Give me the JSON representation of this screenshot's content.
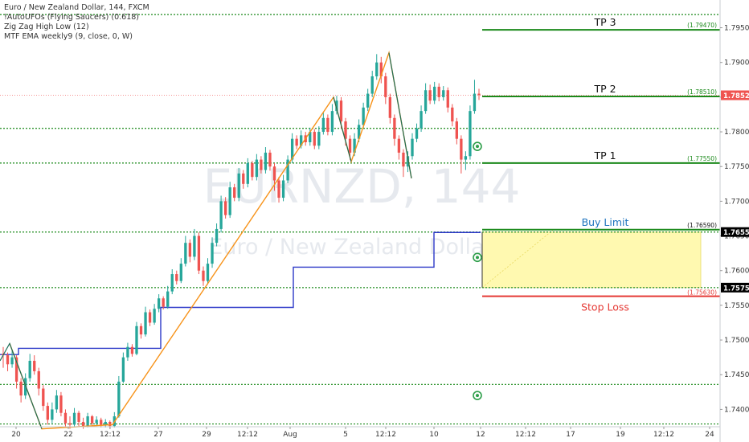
{
  "legend": {
    "title": "Euro / New Zealand Dollar, 144, FXCM",
    "indicators": [
      "!AutoUFOs (Flying Saucers) (0.618)",
      "Zig Zag High Low (12)",
      "MTF EMA weekly9 (9, close, 0, W)"
    ]
  },
  "watermark": {
    "symbol": "EURNZD, 144",
    "name": "Euro / New Zealand Dollar"
  },
  "colors": {
    "up": "#26a69a",
    "down": "#ef5350",
    "green_line": "#1b8a1b",
    "red_line": "#e53935",
    "zigzag": "#f7931a",
    "ema": "#2c38c8",
    "buy_zone": "#fff9b0",
    "buy_label": "#1e73be"
  },
  "chart_data": {
    "type": "candlestick",
    "symbol": "EURNZD",
    "timeframe": "144",
    "ylim": [
      1.7375,
      1.799
    ],
    "y_ticks": [
      "1.74000",
      "1.74500",
      "1.75000",
      "1.75500",
      "1.76000",
      "1.76500",
      "1.77000",
      "1.77500",
      "1.78000",
      "1.78500",
      "1.79000",
      "1.79500"
    ],
    "x_ticks": [
      "20",
      "22",
      "12:12",
      "27",
      "29",
      "12:12",
      "Aug",
      "5",
      "12:12",
      "10",
      "12",
      "12:12",
      "17",
      "19",
      "12:12",
      "24"
    ],
    "price_tags": [
      {
        "label": "1.78527",
        "price": 1.78527,
        "bg": "#ef5350",
        "fg": "#ffffff"
      },
      {
        "label": "1.76556",
        "price": 1.76556,
        "bg": "#000000",
        "fg": "#ffffff"
      },
      {
        "label": "1.75755",
        "price": 1.75755,
        "bg": "#000000",
        "fg": "#ffffff"
      }
    ],
    "levels": [
      {
        "name": "TP 3",
        "price": 1.7947,
        "value_label": "(1.79470)",
        "color": "#1b8a1b"
      },
      {
        "name": "TP 2",
        "price": 1.7851,
        "value_label": "(1.78510)",
        "color": "#1b8a1b"
      },
      {
        "name": "TP 1",
        "price": 1.7755,
        "value_label": "(1.77550)",
        "color": "#1b8a1b"
      },
      {
        "name": "Buy Limit",
        "price": 1.7659,
        "value_label": "(1.76590)",
        "color": "#1e73be"
      },
      {
        "name": "Stop Loss",
        "price": 1.7563,
        "value_label": "(1.75630)",
        "color": "#e53935"
      }
    ],
    "dotted_levels": [
      1.7969,
      1.7805,
      1.7755,
      1.76556,
      1.75755,
      1.7436,
      1.7379
    ],
    "buy_zone": {
      "top": 1.76556,
      "bottom": 1.75755
    },
    "ema_steps": [
      {
        "x": [
          0,
          23
        ],
        "y": 1.7479
      },
      {
        "x": [
          23,
          200
        ],
        "y": 1.7488
      },
      {
        "x": [
          200,
          365
        ],
        "y": 1.7547
      },
      {
        "x": [
          365,
          540
        ],
        "y": 1.7605
      },
      {
        "x": [
          540,
          598
        ],
        "y": 1.7655
      }
    ],
    "zigzag": [
      {
        "x": 12,
        "y": 1.7495
      },
      {
        "x": 52,
        "y": 1.7372
      },
      {
        "x": 140,
        "y": 1.7378
      },
      {
        "x": 415,
        "y": 1.785
      },
      {
        "x": 437,
        "y": 1.7757
      },
      {
        "x": 484,
        "y": 1.7914
      },
      {
        "x": 512,
        "y": 1.7733
      }
    ],
    "ufo_markers": [
      {
        "x": 594,
        "y": 1.7779,
        "color": "#2e9e4a"
      },
      {
        "x": 594,
        "y": 1.7619,
        "color": "#2e9e4a"
      },
      {
        "x": 594,
        "y": 1.742,
        "color": "#2e9e4a"
      }
    ],
    "candles": [
      [
        1.748,
        1.7478,
        1.749,
        1.746
      ],
      [
        1.7478,
        1.7465,
        1.7482,
        1.7455
      ],
      [
        1.7465,
        1.7475,
        1.7485,
        1.746
      ],
      [
        1.7475,
        1.744,
        1.7478,
        1.743
      ],
      [
        1.744,
        1.742,
        1.7445,
        1.741
      ],
      [
        1.742,
        1.7445,
        1.7452,
        1.7415
      ],
      [
        1.7445,
        1.747,
        1.748,
        1.744
      ],
      [
        1.747,
        1.7455,
        1.7478,
        1.745
      ],
      [
        1.7455,
        1.743,
        1.746,
        1.742
      ],
      [
        1.743,
        1.7405,
        1.7435,
        1.7398
      ],
      [
        1.7405,
        1.7385,
        1.741,
        1.7378
      ],
      [
        1.7385,
        1.74,
        1.741,
        1.738
      ],
      [
        1.74,
        1.742,
        1.7428,
        1.7395
      ],
      [
        1.742,
        1.7395,
        1.7425,
        1.739
      ],
      [
        1.7395,
        1.738,
        1.74,
        1.7374
      ],
      [
        1.738,
        1.7378,
        1.739,
        1.7372
      ],
      [
        1.7378,
        1.7395,
        1.7402,
        1.7375
      ],
      [
        1.7395,
        1.7382,
        1.7398,
        1.7376
      ],
      [
        1.7382,
        1.7376,
        1.7388,
        1.7372
      ],
      [
        1.7376,
        1.739,
        1.7395,
        1.7374
      ],
      [
        1.739,
        1.738,
        1.7392,
        1.7375
      ],
      [
        1.738,
        1.7385,
        1.739,
        1.7376
      ],
      [
        1.7385,
        1.7378,
        1.7388,
        1.7374
      ],
      [
        1.7378,
        1.7382,
        1.7386,
        1.7374
      ],
      [
        1.7382,
        1.7376,
        1.7384,
        1.7372
      ],
      [
        1.7376,
        1.739,
        1.7396,
        1.7374
      ],
      [
        1.739,
        1.744,
        1.7448,
        1.7388
      ],
      [
        1.744,
        1.7475,
        1.7482,
        1.7438
      ],
      [
        1.7475,
        1.749,
        1.7496,
        1.747
      ],
      [
        1.749,
        1.748,
        1.7494,
        1.7476
      ],
      [
        1.748,
        1.752,
        1.7526,
        1.7478
      ],
      [
        1.752,
        1.7508,
        1.7524,
        1.7502
      ],
      [
        1.7508,
        1.754,
        1.7548,
        1.7505
      ],
      [
        1.754,
        1.7525,
        1.7544,
        1.752
      ],
      [
        1.7525,
        1.7545,
        1.7552,
        1.7522
      ],
      [
        1.7545,
        1.756,
        1.7566,
        1.754
      ],
      [
        1.756,
        1.7548,
        1.7563,
        1.7544
      ],
      [
        1.7548,
        1.757,
        1.7578,
        1.7545
      ],
      [
        1.757,
        1.7595,
        1.7602,
        1.7566
      ],
      [
        1.7595,
        1.7585,
        1.76,
        1.758
      ],
      [
        1.7585,
        1.761,
        1.7618,
        1.7582
      ],
      [
        1.761,
        1.764,
        1.765,
        1.7606
      ],
      [
        1.764,
        1.762,
        1.7645,
        1.7612
      ],
      [
        1.762,
        1.765,
        1.766,
        1.7615
      ],
      [
        1.765,
        1.76,
        1.7655,
        1.7595
      ],
      [
        1.76,
        1.7585,
        1.7606,
        1.7578
      ],
      [
        1.7585,
        1.761,
        1.7618,
        1.758
      ],
      [
        1.761,
        1.764,
        1.7648,
        1.7604
      ],
      [
        1.764,
        1.766,
        1.7668,
        1.7635
      ],
      [
        1.766,
        1.77,
        1.7708,
        1.7655
      ],
      [
        1.77,
        1.768,
        1.7706,
        1.7675
      ],
      [
        1.768,
        1.772,
        1.7728,
        1.7676
      ],
      [
        1.772,
        1.7705,
        1.7725,
        1.77
      ],
      [
        1.7705,
        1.774,
        1.7748,
        1.77
      ],
      [
        1.774,
        1.7725,
        1.7745,
        1.7718
      ],
      [
        1.7725,
        1.7755,
        1.7762,
        1.772
      ],
      [
        1.7755,
        1.7735,
        1.7758,
        1.773
      ],
      [
        1.7735,
        1.776,
        1.7768,
        1.773
      ],
      [
        1.776,
        1.7745,
        1.7765,
        1.774
      ],
      [
        1.7745,
        1.777,
        1.7778,
        1.774
      ],
      [
        1.777,
        1.775,
        1.7774,
        1.7744
      ],
      [
        1.775,
        1.773,
        1.7755,
        1.7715
      ],
      [
        1.773,
        1.7705,
        1.7735,
        1.7698
      ],
      [
        1.7705,
        1.773,
        1.7738,
        1.77
      ],
      [
        1.773,
        1.776,
        1.7766,
        1.7726
      ],
      [
        1.776,
        1.779,
        1.7798,
        1.7755
      ],
      [
        1.779,
        1.778,
        1.7795,
        1.7775
      ],
      [
        1.778,
        1.7795,
        1.7802,
        1.7776
      ],
      [
        1.7795,
        1.7785,
        1.78,
        1.778
      ],
      [
        1.7785,
        1.78,
        1.7806,
        1.778
      ],
      [
        1.78,
        1.778,
        1.7804,
        1.7775
      ],
      [
        1.778,
        1.78,
        1.7808,
        1.7775
      ],
      [
        1.78,
        1.782,
        1.7828,
        1.7796
      ],
      [
        1.782,
        1.78,
        1.7825,
        1.7795
      ],
      [
        1.78,
        1.783,
        1.784,
        1.7795
      ],
      [
        1.783,
        1.7845,
        1.7852,
        1.7825
      ],
      [
        1.7845,
        1.7815,
        1.785,
        1.7805
      ],
      [
        1.7815,
        1.779,
        1.782,
        1.778
      ],
      [
        1.779,
        1.777,
        1.7795,
        1.776
      ],
      [
        1.777,
        1.779,
        1.7798,
        1.7765
      ],
      [
        1.779,
        1.781,
        1.7818,
        1.7785
      ],
      [
        1.781,
        1.7835,
        1.7842,
        1.7805
      ],
      [
        1.7835,
        1.7855,
        1.7862,
        1.783
      ],
      [
        1.7855,
        1.788,
        1.7888,
        1.785
      ],
      [
        1.788,
        1.79,
        1.7912,
        1.7875
      ],
      [
        1.79,
        1.788,
        1.7908,
        1.787
      ],
      [
        1.788,
        1.785,
        1.7885,
        1.784
      ],
      [
        1.785,
        1.782,
        1.7855,
        1.7812
      ],
      [
        1.782,
        1.779,
        1.7825,
        1.778
      ],
      [
        1.779,
        1.777,
        1.7795,
        1.776
      ],
      [
        1.777,
        1.775,
        1.7775,
        1.7735
      ],
      [
        1.775,
        1.7765,
        1.7772,
        1.7742
      ],
      [
        1.7765,
        1.779,
        1.7798,
        1.776
      ],
      [
        1.779,
        1.7805,
        1.7812,
        1.7785
      ],
      [
        1.7805,
        1.783,
        1.7838,
        1.78
      ],
      [
        1.783,
        1.786,
        1.787,
        1.7826
      ],
      [
        1.786,
        1.7845,
        1.7868,
        1.784
      ],
      [
        1.7845,
        1.7865,
        1.7872,
        1.784
      ],
      [
        1.7865,
        1.785,
        1.787,
        1.7844
      ],
      [
        1.785,
        1.786,
        1.7866,
        1.7845
      ],
      [
        1.786,
        1.7835,
        1.7864,
        1.7828
      ],
      [
        1.7835,
        1.7815,
        1.784,
        1.7808
      ],
      [
        1.7815,
        1.779,
        1.782,
        1.7782
      ],
      [
        1.779,
        1.776,
        1.7795,
        1.774
      ],
      [
        1.776,
        1.7765,
        1.7772,
        1.7745
      ],
      [
        1.7765,
        1.783,
        1.7838,
        1.776
      ],
      [
        1.783,
        1.7855,
        1.7875,
        1.7826
      ],
      [
        1.7855,
        1.7853,
        1.7862,
        1.7846
      ]
    ]
  }
}
